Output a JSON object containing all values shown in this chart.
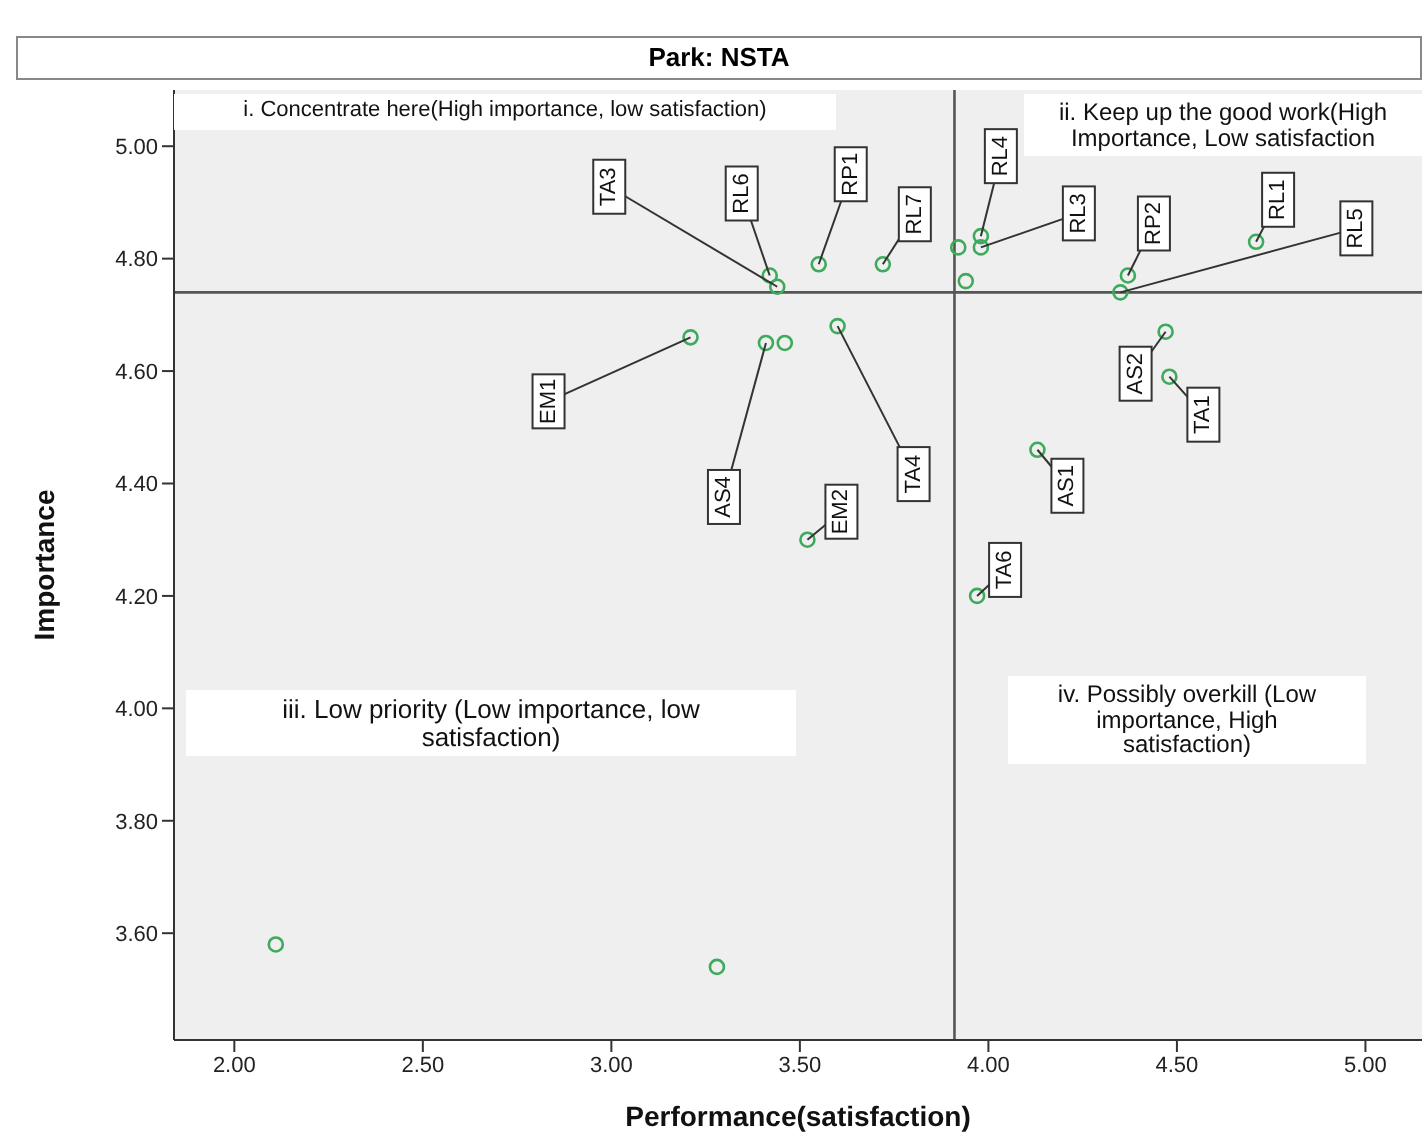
{
  "chart_data": {
    "type": "scatter",
    "title": "Park: NSTA",
    "xlabel": "Performance(satisfaction)",
    "ylabel": "Importance",
    "xlim": [
      1.84,
      5.15
    ],
    "ylim": [
      3.41,
      5.1
    ],
    "xticks": [
      {
        "value": 2,
        "label": "2.00"
      },
      {
        "value": 2.5,
        "label": "2.50"
      },
      {
        "value": 3,
        "label": "3.00"
      },
      {
        "value": 3.5,
        "label": "3.50"
      },
      {
        "value": 4,
        "label": "4.00"
      },
      {
        "value": 4.5,
        "label": "4.50"
      },
      {
        "value": 5,
        "label": "5.00"
      }
    ],
    "yticks": [
      {
        "value": 3.6,
        "label": "3.60"
      },
      {
        "value": 3.8,
        "label": "3.80"
      },
      {
        "value": 4,
        "label": "4.00"
      },
      {
        "value": 4.2,
        "label": "4.20"
      },
      {
        "value": 4.4,
        "label": "4.40"
      },
      {
        "value": 4.6,
        "label": "4.60"
      },
      {
        "value": 4.8,
        "label": "4.80"
      },
      {
        "value": 5,
        "label": "5.00"
      }
    ],
    "x": [
      2.11,
      3.28,
      3.44,
      3.42,
      3.55,
      3.72,
      3.21,
      3.41,
      3.46,
      3.6,
      3.52,
      3.92,
      3.98,
      3.98,
      3.94,
      4.71,
      4.37,
      4.35,
      4.47,
      4.48,
      4.13,
      3.97
    ],
    "values": [
      3.58,
      3.54,
      4.75,
      4.77,
      4.79,
      4.79,
      4.66,
      4.65,
      4.65,
      4.68,
      4.3,
      4.82,
      4.84,
      4.82,
      4.76,
      4.83,
      4.77,
      4.74,
      4.67,
      4.59,
      4.46,
      4.2
    ],
    "color": "#3daa5c",
    "marker": "circle",
    "grid": false,
    "legend": false,
    "ref_lines": [
      {
        "axis": "x",
        "value": 3.91,
        "color": "#555555"
      },
      {
        "axis": "y",
        "value": 4.74,
        "color": "#555555"
      }
    ],
    "annotations": [
      "i. Concentrate here(High importance, low satisfaction)",
      "ii. Keep up the good work(High Importance, Low satisfaction",
      "iii. Low priority (Low importance, low satisfaction)",
      "iv. Possibly overkill (Low importance, High satisfaction)",
      {
        "text": "TA3",
        "x": 3.44,
        "y": 4.75
      },
      {
        "text": "RL6",
        "x": 3.42,
        "y": 4.77
      },
      {
        "text": "RP1",
        "x": 3.55,
        "y": 4.79
      },
      {
        "text": "RL7",
        "x": 3.72,
        "y": 4.79
      },
      {
        "text": "EM1",
        "x": 3.21,
        "y": 4.66
      },
      {
        "text": "AS4",
        "x": 3.41,
        "y": 4.65
      },
      {
        "text": "TA4",
        "x": 3.6,
        "y": 4.68
      },
      {
        "text": "EM2",
        "x": 3.52,
        "y": 4.3
      },
      {
        "text": "RL4",
        "x": 3.98,
        "y": 4.84
      },
      {
        "text": "RL3",
        "x": 3.98,
        "y": 4.82
      },
      {
        "text": "RP2",
        "x": 4.37,
        "y": 4.77
      },
      {
        "text": "RL1",
        "x": 4.71,
        "y": 4.83
      },
      {
        "text": "RL5",
        "x": 4.35,
        "y": 4.74
      },
      {
        "text": "AS2",
        "x": 4.47,
        "y": 4.67
      },
      {
        "text": "TA1",
        "x": 4.48,
        "y": 4.59
      },
      {
        "text": "AS1",
        "x": 4.13,
        "y": 4.46
      },
      {
        "text": "TA6",
        "x": 3.97,
        "y": 4.2
      }
    ]
  }
}
